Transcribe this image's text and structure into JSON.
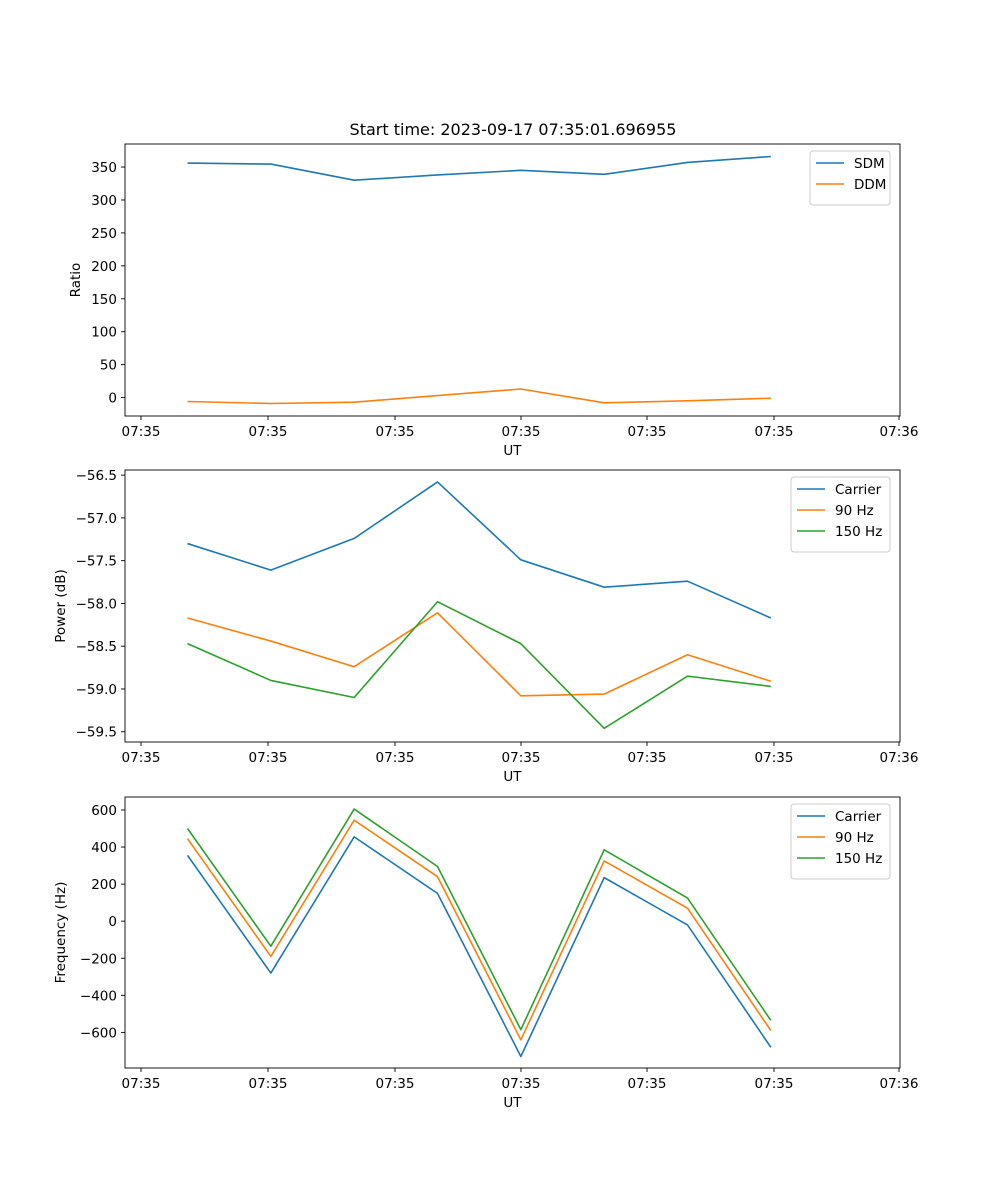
{
  "figure": {
    "title": "Start time: 2023-09-17 07:35:01.696955"
  },
  "chart_data": [
    {
      "type": "line",
      "title": "Start time: 2023-09-17 07:35:01.696955",
      "xlabel": "UT",
      "ylabel": "Ratio",
      "x_tick_labels": [
        "07:35",
        "07:35",
        "07:35",
        "07:35",
        "07:35",
        "07:35",
        "07:36"
      ],
      "y_ticks": [
        0,
        50,
        100,
        150,
        200,
        250,
        300,
        350
      ],
      "ylim": [
        -28,
        385
      ],
      "xlim": [
        -0.25,
        9.05
      ],
      "legend_position": "upper right",
      "x": [
        0.5,
        1.5,
        2.5,
        3.5,
        4.5,
        5.5,
        6.5,
        7.5
      ],
      "series": [
        {
          "name": "SDM",
          "color": "#1f77b4",
          "values": [
            356,
            354.5,
            330,
            338,
            345,
            339,
            357,
            366
          ]
        },
        {
          "name": "DDM",
          "color": "#ff7f0e",
          "values": [
            -6,
            -9,
            -7,
            3,
            13,
            -8,
            -5,
            -1
          ]
        }
      ]
    },
    {
      "type": "line",
      "xlabel": "UT",
      "ylabel": "Power (dB)",
      "x_tick_labels": [
        "07:35",
        "07:35",
        "07:35",
        "07:35",
        "07:35",
        "07:35",
        "07:36"
      ],
      "y_ticks": [
        -59.5,
        -59.0,
        -58.5,
        -58.0,
        -57.5,
        -57.0,
        -56.5
      ],
      "y_tick_labels": [
        "−59.5",
        "−59.0",
        "−58.5",
        "−58.0",
        "−57.5",
        "−57.0",
        "−56.5"
      ],
      "ylim": [
        -59.62,
        -56.44
      ],
      "xlim": [
        -0.25,
        9.05
      ],
      "legend_position": "upper right",
      "x": [
        0.5,
        1.5,
        2.5,
        3.5,
        4.5,
        5.5,
        6.5,
        7.5
      ],
      "series": [
        {
          "name": "Carrier",
          "color": "#1f77b4",
          "values": [
            -57.3,
            -57.61,
            -57.24,
            -56.58,
            -57.49,
            -57.81,
            -57.74,
            -58.17
          ]
        },
        {
          "name": "90 Hz",
          "color": "#ff7f0e",
          "values": [
            -58.17,
            -58.44,
            -58.74,
            -58.11,
            -59.08,
            -59.06,
            -58.6,
            -58.91
          ]
        },
        {
          "name": "150 Hz",
          "color": "#2ca02c",
          "values": [
            -58.47,
            -58.9,
            -59.1,
            -57.98,
            -58.47,
            -59.46,
            -58.85,
            -58.97
          ]
        }
      ]
    },
    {
      "type": "line",
      "xlabel": "UT",
      "ylabel": "Frequency (Hz)",
      "x_tick_labels": [
        "07:35",
        "07:35",
        "07:35",
        "07:35",
        "07:35",
        "07:35",
        "07:36"
      ],
      "y_ticks": [
        -600,
        -400,
        -200,
        0,
        200,
        400,
        600
      ],
      "y_tick_labels": [
        "−600",
        "−400",
        "−200",
        "0",
        "200",
        "400",
        "600"
      ],
      "ylim": [
        -792,
        670
      ],
      "xlim": [
        -0.25,
        9.05
      ],
      "legend_position": "upper right",
      "x": [
        0.5,
        1.5,
        2.5,
        3.5,
        4.5,
        5.5,
        6.5,
        7.5
      ],
      "series": [
        {
          "name": "Carrier",
          "color": "#1f77b4",
          "values": [
            355,
            -280,
            455,
            150,
            -730,
            235,
            -20,
            -680
          ]
        },
        {
          "name": "90 Hz",
          "color": "#ff7f0e",
          "values": [
            445,
            -190,
            545,
            240,
            -640,
            325,
            70,
            -590
          ]
        },
        {
          "name": "150 Hz",
          "color": "#2ca02c",
          "values": [
            500,
            -135,
            605,
            295,
            -585,
            385,
            125,
            -535
          ]
        }
      ]
    }
  ]
}
